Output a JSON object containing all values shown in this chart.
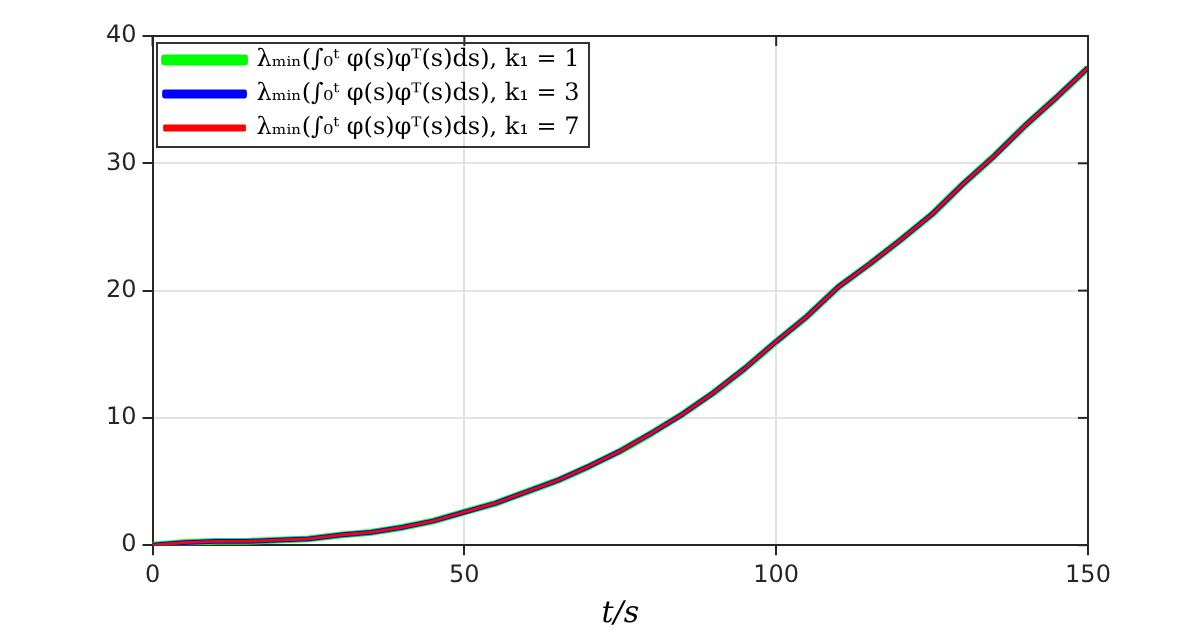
{
  "chart_data": {
    "type": "line",
    "xlabel": "t/s",
    "x": [
      0,
      5,
      10,
      15,
      20,
      25,
      30,
      35,
      40,
      45,
      50,
      55,
      60,
      65,
      70,
      75,
      80,
      85,
      90,
      95,
      100,
      105,
      110,
      115,
      120,
      125,
      130,
      135,
      140,
      145,
      150
    ],
    "series": [
      {
        "name": "λₘᵢₙ(∫₀ᵗ φ(s)φᵀ(s)ds), k₁ = 1",
        "color": "#00ff00",
        "values": [
          0,
          0.2,
          0.3,
          0.3,
          0.4,
          0.5,
          0.8,
          1,
          1.4,
          1.9,
          2.6,
          3.3,
          4.2,
          5.1,
          6.2,
          7.4,
          8.8,
          10.3,
          12,
          13.9,
          16,
          18,
          20.3,
          22.1,
          24,
          26,
          28.4,
          30.6,
          33,
          35.2,
          37.5
        ]
      },
      {
        "name": "λₘᵢₙ(∫₀ᵗ φ(s)φᵀ(s)ds), k₁ = 3",
        "color": "#0000ff",
        "values": [
          0,
          0.2,
          0.3,
          0.3,
          0.4,
          0.5,
          0.8,
          1,
          1.4,
          1.9,
          2.6,
          3.3,
          4.2,
          5.1,
          6.2,
          7.4,
          8.8,
          10.3,
          12,
          13.9,
          16,
          18,
          20.3,
          22.1,
          24,
          26,
          28.4,
          30.6,
          33,
          35.2,
          37.5
        ]
      },
      {
        "name": "λₘᵢₙ(∫₀ᵗ φ(s)φᵀ(s)ds), k₁ = 7",
        "color": "#ff0000",
        "values": [
          0,
          0.2,
          0.3,
          0.3,
          0.4,
          0.5,
          0.8,
          1,
          1.4,
          1.9,
          2.6,
          3.3,
          4.2,
          5.1,
          6.2,
          7.4,
          8.8,
          10.3,
          12,
          13.9,
          16,
          18,
          20.3,
          22.1,
          24,
          26,
          28.4,
          30.6,
          33,
          35.2,
          37.5
        ]
      }
    ],
    "xlim": [
      0,
      150
    ],
    "xticks": [
      0,
      50,
      100,
      150
    ],
    "ylim": [
      0,
      40
    ],
    "yticks": [
      0,
      10,
      20,
      30,
      40
    ],
    "grid": true,
    "legend": "top left"
  }
}
